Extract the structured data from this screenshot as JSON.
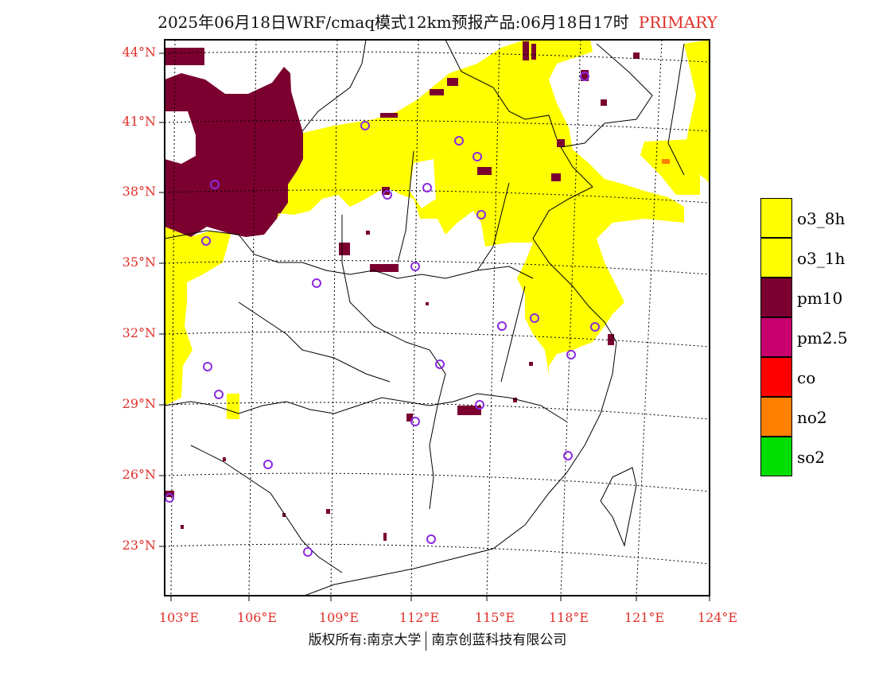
{
  "title": {
    "main": "2025年06月18日WRF/cmaq模式12km预报产品:06月18日17时",
    "tag": "PRIMARY"
  },
  "lat_labels": [
    "44°N",
    "41°N",
    "38°N",
    "35°N",
    "32°N",
    "29°N",
    "26°N",
    "23°N"
  ],
  "lon_labels": [
    "103°E",
    "106°E",
    "109°E",
    "112°E",
    "115°E",
    "118°E",
    "121°E",
    "124°E"
  ],
  "legend": [
    {
      "label": "o3_8h",
      "color": "#ffff00"
    },
    {
      "label": "o3_1h",
      "color": "#ffff00"
    },
    {
      "label": "pm10",
      "color": "#7b0030"
    },
    {
      "label": "pm2.5",
      "color": "#c8006e"
    },
    {
      "label": "co",
      "color": "#ff0000"
    },
    {
      "label": "no2",
      "color": "#ff8000"
    },
    {
      "label": "so2",
      "color": "#00dd00"
    }
  ],
  "footer": {
    "left": "版权所有:南京大学",
    "right": "南京创蓝科技有限公司"
  },
  "colors": {
    "frame": "#000000",
    "label_red": "#e0302a",
    "station_marker": "#8a2be2"
  },
  "icons": {
    "station": "circle-outline"
  }
}
